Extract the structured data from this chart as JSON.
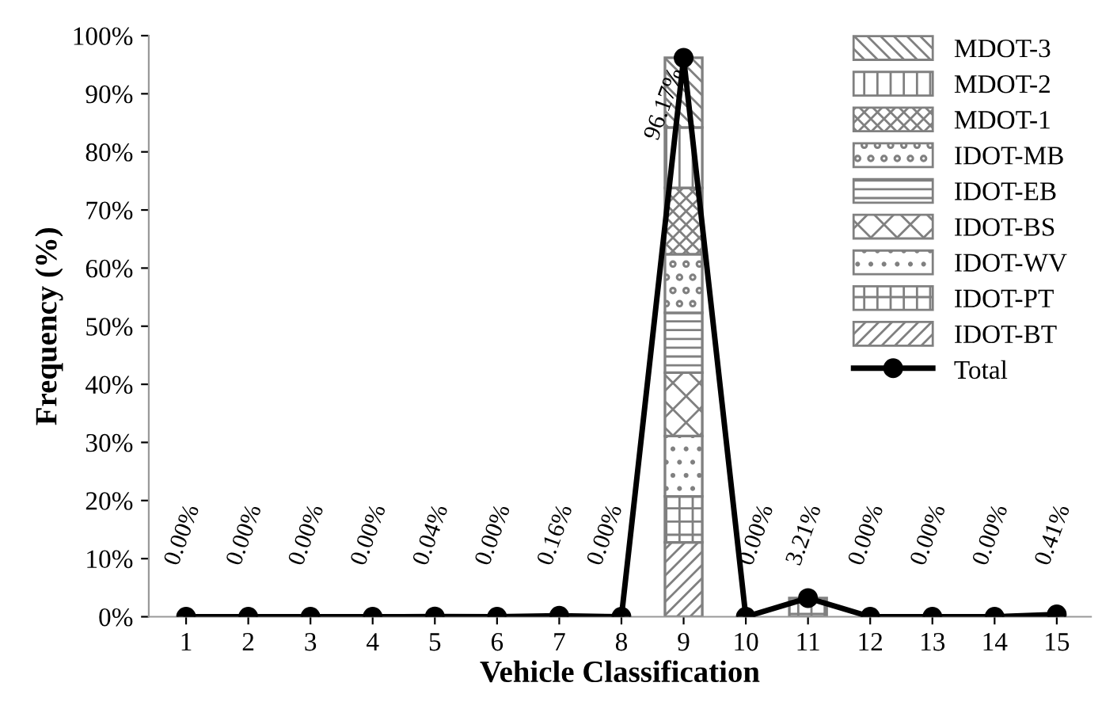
{
  "chart_data": {
    "type": "bar",
    "stacked": true,
    "xlabel": "Vehicle Classification",
    "ylabel": "Frequency (%)",
    "categories": [
      "1",
      "2",
      "3",
      "4",
      "5",
      "6",
      "7",
      "8",
      "9",
      "10",
      "11",
      "12",
      "13",
      "14",
      "15"
    ],
    "ylim": [
      0,
      100
    ],
    "yticks": [
      {
        "value": 0,
        "label": "0%"
      },
      {
        "value": 10,
        "label": "10%"
      },
      {
        "value": 20,
        "label": "20%"
      },
      {
        "value": 30,
        "label": "30%"
      },
      {
        "value": 40,
        "label": "40%"
      },
      {
        "value": 50,
        "label": "50%"
      },
      {
        "value": 60,
        "label": "60%"
      },
      {
        "value": 70,
        "label": "70%"
      },
      {
        "value": 80,
        "label": "80%"
      },
      {
        "value": 90,
        "label": "90%"
      },
      {
        "value": 100,
        "label": "100%"
      }
    ],
    "grid": false,
    "legend": "top right",
    "series": [
      {
        "name": "IDOT-BT",
        "color": "#808080",
        "values": [
          null,
          null,
          null,
          null,
          null,
          null,
          null,
          null,
          12.8,
          null,
          null,
          null,
          null,
          null,
          null
        ]
      },
      {
        "name": "IDOT-PT",
        "color": "#808080",
        "values": [
          null,
          null,
          null,
          null,
          null,
          null,
          null,
          null,
          7.9,
          null,
          3.2,
          null,
          null,
          null,
          null
        ]
      },
      {
        "name": "IDOT-WV",
        "color": "#808080",
        "values": [
          null,
          null,
          null,
          null,
          null,
          null,
          null,
          null,
          10.4,
          null,
          null,
          null,
          null,
          null,
          null
        ]
      },
      {
        "name": "IDOT-BS",
        "color": "#808080",
        "values": [
          null,
          null,
          null,
          null,
          null,
          null,
          null,
          null,
          10.9,
          null,
          null,
          null,
          null,
          null,
          null
        ]
      },
      {
        "name": "IDOT-EB",
        "color": "#808080",
        "values": [
          null,
          null,
          null,
          null,
          null,
          null,
          null,
          null,
          10.3,
          null,
          null,
          null,
          null,
          null,
          null
        ]
      },
      {
        "name": "IDOT-MB",
        "color": "#808080",
        "values": [
          null,
          null,
          null,
          null,
          null,
          null,
          null,
          null,
          10.1,
          null,
          null,
          null,
          null,
          null,
          null
        ]
      },
      {
        "name": "MDOT-1",
        "color": "#808080",
        "values": [
          null,
          null,
          null,
          null,
          null,
          null,
          null,
          null,
          11.4,
          null,
          null,
          null,
          null,
          null,
          null
        ]
      },
      {
        "name": "MDOT-2",
        "color": "#808080",
        "values": [
          null,
          null,
          null,
          null,
          null,
          null,
          null,
          null,
          10.4,
          null,
          null,
          null,
          null,
          null,
          null
        ]
      },
      {
        "name": "MDOT-3",
        "color": "#808080",
        "values": [
          null,
          null,
          null,
          null,
          null,
          null,
          null,
          null,
          12.0,
          null,
          null,
          null,
          null,
          null,
          null
        ]
      },
      {
        "name": "Total",
        "type": "line",
        "color": "#000000",
        "marker": "circle",
        "line_style": "solid",
        "values": [
          0,
          0,
          0,
          0,
          0.04,
          0,
          0.16,
          0,
          96.17,
          0,
          3.21,
          0,
          0,
          0,
          0.41
        ],
        "value_labels": [
          "0.00%",
          "0.00%",
          "0.00%",
          "0.00%",
          "0.04%",
          "0.00%",
          "0.16%",
          "0.00%",
          "96.17%",
          "0.00%",
          "3.21%",
          "0.00%",
          "0.00%",
          "0.00%",
          "0.41%"
        ]
      }
    ]
  }
}
